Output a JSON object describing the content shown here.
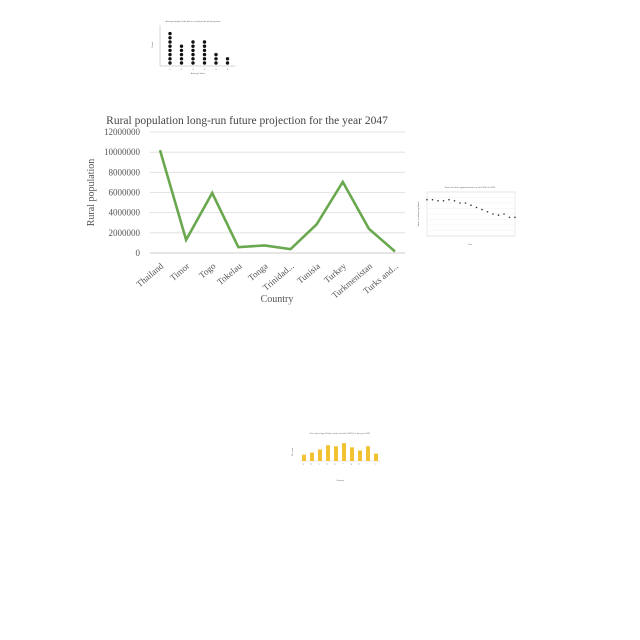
{
  "chart_data": [
    {
      "type": "line",
      "title": "Rural population long-run future projection for the year 2047",
      "xlabel": "Country",
      "ylabel": "Rural population",
      "categories": [
        "Thailand",
        "Timor",
        "Togo",
        "Tokelau",
        "Tonga",
        "Trinidad...",
        "Tunisia",
        "Turkey",
        "Turkmenistan",
        "Turks and..."
      ],
      "series": [
        {
          "values": [
            10200000,
            1300000,
            5950000,
            580000,
            750000,
            380000,
            2850000,
            7050000,
            2400000,
            150000
          ],
          "color": "#6aa84f"
        }
      ],
      "ylim": [
        0,
        12000000
      ],
      "yticks": [
        "0",
        "2000000",
        "4000000",
        "6000000",
        "8000000",
        "10000000",
        "12000000"
      ],
      "grid": true
    },
    {
      "type": "scatter",
      "title": "Average height of dot plot in a stacked dot plot projection",
      "xlabel": "Average Value",
      "ylabel": "Count",
      "categories": [
        "1",
        "2",
        "3",
        "4",
        "5",
        "6"
      ],
      "values": [
        8,
        5,
        6,
        6,
        3,
        2
      ],
      "color": "#111111"
    },
    {
      "type": "scatter",
      "title": "Share of urban agglomerations in total 2000 to 2050",
      "xlabel": "Year",
      "ylabel": "Share of urban population",
      "x": [
        2000,
        2005,
        2010,
        2015,
        2020,
        2025,
        2030,
        2035,
        2040,
        2045,
        2050,
        2055,
        2060,
        2065,
        2070,
        2075,
        2080
      ],
      "y": [
        93,
        93,
        92,
        92,
        93,
        92,
        90,
        90,
        88,
        86,
        84,
        82,
        80,
        79,
        80,
        77,
        77
      ],
      "ylim": [
        60,
        100
      ],
      "color": "#333333"
    },
    {
      "type": "bar",
      "title": "Per cent of age 60 plus share of total ( 2047) for the year 2047",
      "xlabel": "Country",
      "ylabel": "Per cent",
      "categories": [
        "a",
        "b",
        "c",
        "d",
        "e",
        "f",
        "g",
        "h",
        "i",
        "j"
      ],
      "values": [
        30,
        40,
        55,
        75,
        70,
        85,
        65,
        50,
        70,
        35
      ],
      "ylim": [
        0,
        100
      ],
      "color": "#f1c232"
    }
  ]
}
